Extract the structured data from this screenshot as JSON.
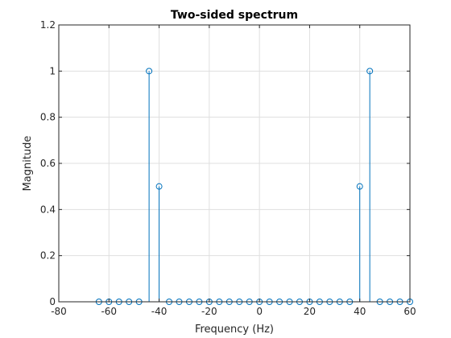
{
  "chart_data": {
    "type": "stem",
    "title": "Two-sided spectrum",
    "xlabel": "Frequency (Hz)",
    "ylabel": "Magnitude",
    "xlim": [
      -80,
      60
    ],
    "ylim": [
      0,
      1.2
    ],
    "xticks": [
      -80,
      -60,
      -40,
      -20,
      0,
      20,
      40,
      60
    ],
    "yticks": [
      0,
      0.2,
      0.4,
      0.6,
      0.8,
      1,
      1.2
    ],
    "grid": true,
    "series": [
      {
        "color": "#0072BD",
        "marker": "circle",
        "x": [
          -64,
          -60,
          -56,
          -52,
          -48,
          -44,
          -40,
          -36,
          -32,
          -28,
          -24,
          -20,
          -16,
          -12,
          -8,
          -4,
          0,
          4,
          8,
          12,
          16,
          20,
          24,
          28,
          32,
          36,
          40,
          44,
          48,
          52,
          56,
          60
        ],
        "y": [
          0,
          0,
          0,
          0,
          0,
          1,
          0.5,
          0,
          0,
          0,
          0,
          0,
          0,
          0,
          0,
          0,
          0,
          0,
          0,
          0,
          0,
          0,
          0,
          0,
          0,
          0,
          0.5,
          1,
          0,
          0,
          0,
          0
        ]
      }
    ]
  }
}
